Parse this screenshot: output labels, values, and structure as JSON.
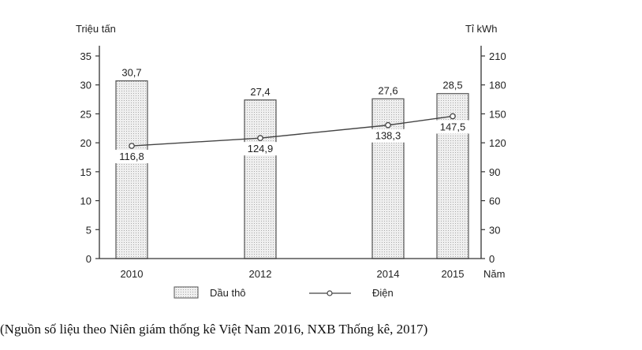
{
  "chart_data": {
    "type": "bar",
    "categories": [
      "2010",
      "2012",
      "2014",
      "2015"
    ],
    "xlabel": "Năm",
    "left_axis": {
      "label": "Triệu tấn",
      "ylim": [
        0,
        35
      ],
      "ticks": [
        "0",
        "5",
        "10",
        "15",
        "20",
        "25",
        "30",
        "35"
      ]
    },
    "right_axis": {
      "label": "Tỉ kWh",
      "ylim": [
        0,
        210
      ],
      "ticks": [
        "0",
        "30",
        "60",
        "90",
        "120",
        "150",
        "180",
        "210"
      ]
    },
    "series": [
      {
        "name": "Dầu thô",
        "type": "bar",
        "axis": "left",
        "values": [
          30.7,
          27.4,
          27.6,
          28.5
        ],
        "labels": [
          "30,7",
          "27,4",
          "27,6",
          "28,5"
        ]
      },
      {
        "name": "Điện",
        "type": "line",
        "axis": "right",
        "values": [
          116.8,
          124.9,
          138.3,
          147.5
        ],
        "labels": [
          "116,8",
          "124,9",
          "138,3",
          "147,5"
        ]
      }
    ],
    "grid": false,
    "legend_position": "bottom",
    "colors": {
      "bar_fill": "#e8e8e8",
      "bar_stroke": "#555555",
      "line": "#444444"
    }
  },
  "source": "(Nguồn số liệu theo Niên giám thống kê Việt Nam 2016, NXB Thống kê, 2017)"
}
